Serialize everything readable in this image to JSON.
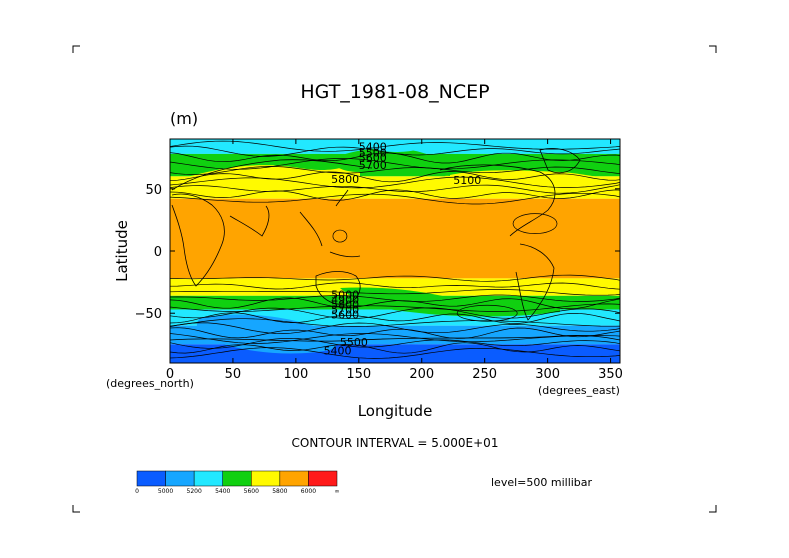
{
  "chart_data": {
    "type": "heatmap",
    "title": "HGT_1981-08_NCEP",
    "units": "(m)",
    "xlabel": "Longitude",
    "ylabel": "Latitude",
    "x_ticks": [
      0,
      50,
      100,
      150,
      200,
      250,
      300,
      350
    ],
    "y_ticks": [
      50,
      0,
      -50
    ],
    "x_units_label": "(degrees_east)",
    "y_units_label": "(degrees_north)",
    "xlim": [
      0,
      357.5
    ],
    "ylim": [
      -90,
      90
    ],
    "contour_interval_text": "CONTOUR INTERVAL = 5.000E+01",
    "level_text": "level=500 millibar",
    "contour_labels": [
      "5400",
      "5500",
      "5600",
      "5700",
      "5800",
      "5100",
      "5000",
      "4900",
      "5800",
      "5700",
      "5600",
      "5500",
      "5400"
    ],
    "colorbar": {
      "ticks": [
        "0",
        "5000",
        "5200",
        "5400",
        "5600",
        "5800",
        "6000",
        "∞"
      ],
      "colors": [
        "#0a5cff",
        "#16a6ff",
        "#22e8ff",
        "#10d010",
        "#fffa00",
        "#ffa400",
        "#ff1a1a"
      ]
    },
    "bands": [
      {
        "lat_top": 90,
        "lat_bottom": 78,
        "value": 5350
      },
      {
        "lat_top": 78,
        "lat_bottom": 60,
        "value": 5500
      },
      {
        "lat_top": 60,
        "lat_bottom": 42,
        "value": 5700
      },
      {
        "lat_top": 42,
        "lat_bottom": -22,
        "value": 5860
      },
      {
        "lat_top": -22,
        "lat_bottom": -36,
        "value": 5700
      },
      {
        "lat_top": -36,
        "lat_bottom": -47,
        "value": 5500
      },
      {
        "lat_top": -47,
        "lat_bottom": -60,
        "value": 5300
      },
      {
        "lat_top": -60,
        "lat_bottom": -75,
        "value": 5100
      },
      {
        "lat_top": -75,
        "lat_bottom": -90,
        "value": 4950
      }
    ]
  }
}
